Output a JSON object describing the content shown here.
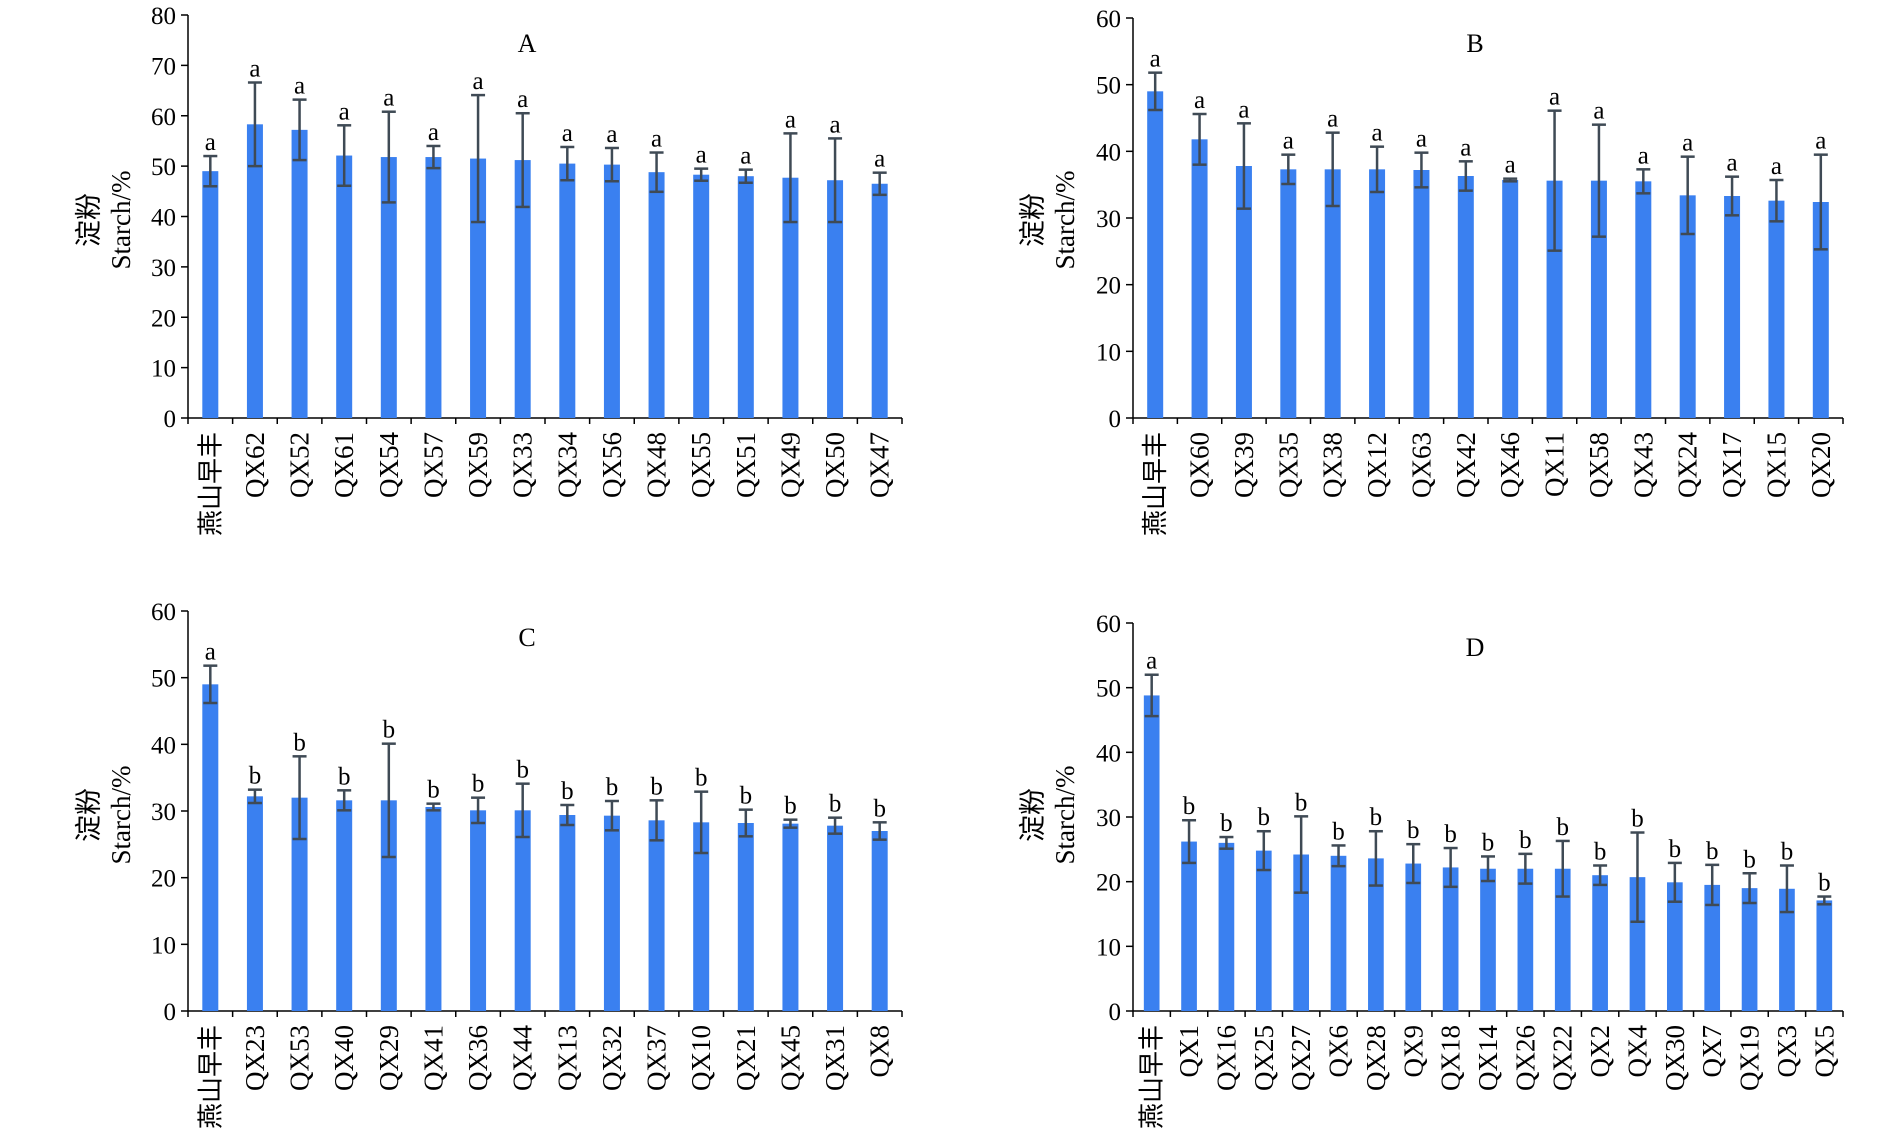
{
  "figure": {
    "bar_color": "#3a80f0",
    "error_color": "#3f4a55",
    "ylabel_cn": "淀粉",
    "ylabel_en": "Starch/%"
  },
  "chart_data": [
    {
      "type": "bar",
      "title": "A",
      "ylabel": "淀粉 Starch/%",
      "ylim": [
        0,
        80
      ],
      "yticks": [
        0,
        10,
        20,
        30,
        40,
        50,
        60,
        70,
        80
      ],
      "categories": [
        "燕山早丰",
        "QX62",
        "QX52",
        "QX61",
        "QX54",
        "QX57",
        "QX59",
        "QX33",
        "QX34",
        "QX56",
        "QX48",
        "QX55",
        "QX51",
        "QX49",
        "QX50",
        "QX47"
      ],
      "values": [
        49.0,
        58.3,
        57.2,
        52.1,
        51.8,
        51.8,
        51.5,
        51.2,
        50.5,
        50.3,
        48.8,
        48.3,
        48.0,
        47.7,
        47.2,
        46.5
      ],
      "errors": [
        3.0,
        8.3,
        6.0,
        6.0,
        9.0,
        2.2,
        12.6,
        9.3,
        3.3,
        3.3,
        3.9,
        1.2,
        1.3,
        8.8,
        8.3,
        2.2
      ],
      "letters": [
        "a",
        "a",
        "a",
        "a",
        "a",
        "a",
        "a",
        "a",
        "a",
        "a",
        "a",
        "a",
        "a",
        "a",
        "a",
        "a"
      ]
    },
    {
      "type": "bar",
      "title": "B",
      "ylabel": "淀粉 Starch/%",
      "ylim": [
        0,
        60
      ],
      "yticks": [
        0,
        10,
        20,
        30,
        40,
        50,
        60
      ],
      "categories": [
        "燕山早丰",
        "QX60",
        "QX39",
        "QX35",
        "QX38",
        "QX12",
        "QX63",
        "QX42",
        "QX46",
        "QX11",
        "QX58",
        "QX43",
        "QX24",
        "QX17",
        "QX15",
        "QX20"
      ],
      "values": [
        49.0,
        41.8,
        37.8,
        37.3,
        37.3,
        37.3,
        37.2,
        36.3,
        35.7,
        35.6,
        35.6,
        35.5,
        33.4,
        33.3,
        32.6,
        32.4
      ],
      "errors": [
        2.8,
        3.8,
        6.4,
        2.2,
        5.5,
        3.4,
        2.6,
        2.2,
        0.2,
        10.5,
        8.4,
        1.8,
        5.8,
        2.9,
        3.1,
        7.1
      ],
      "letters": [
        "a",
        "a",
        "a",
        "a",
        "a",
        "a",
        "a",
        "a",
        "a",
        "a",
        "a",
        "a",
        "a",
        "a",
        "a",
        "a"
      ]
    },
    {
      "type": "bar",
      "title": "C",
      "ylabel": "淀粉 Starch/%",
      "ylim": [
        0,
        60
      ],
      "yticks": [
        0,
        10,
        20,
        30,
        40,
        50,
        60
      ],
      "categories": [
        "燕山早丰",
        "QX23",
        "QX53",
        "QX40",
        "QX29",
        "QX41",
        "QX36",
        "QX44",
        "QX13",
        "QX32",
        "QX37",
        "QX10",
        "QX21",
        "QX45",
        "QX31",
        "QX8"
      ],
      "values": [
        49.0,
        32.2,
        32.0,
        31.6,
        31.6,
        30.6,
        30.1,
        30.1,
        29.4,
        29.3,
        28.6,
        28.3,
        28.2,
        28.1,
        27.8,
        27.0
      ],
      "errors": [
        2.8,
        1.0,
        6.2,
        1.5,
        8.5,
        0.5,
        1.9,
        4.0,
        1.5,
        2.2,
        3.0,
        4.6,
        2.0,
        0.6,
        1.2,
        1.3
      ],
      "letters": [
        "a",
        "b",
        "b",
        "b",
        "b",
        "b",
        "b",
        "b",
        "b",
        "b",
        "b",
        "b",
        "b",
        "b",
        "b",
        "b"
      ]
    },
    {
      "type": "bar",
      "title": "D",
      "ylabel": "淀粉 Starch/%",
      "ylim": [
        0,
        60
      ],
      "yticks": [
        0,
        10,
        20,
        30,
        40,
        50,
        60
      ],
      "categories": [
        "燕山早丰",
        "QX1",
        "QX16",
        "QX25",
        "QX27",
        "QX6",
        "QX28",
        "QX9",
        "QX18",
        "QX14",
        "QX26",
        "QX22",
        "QX2",
        "QX4",
        "QX30",
        "QX7",
        "QX19",
        "QX3",
        "QX5"
      ],
      "values": [
        48.8,
        26.2,
        26.0,
        24.8,
        24.2,
        24.0,
        23.6,
        22.8,
        22.2,
        22.0,
        22.0,
        22.0,
        21.0,
        20.7,
        19.9,
        19.5,
        19.0,
        18.9,
        17.1
      ],
      "errors": [
        3.2,
        3.3,
        0.9,
        3.0,
        5.9,
        1.6,
        4.2,
        3.0,
        3.0,
        1.9,
        2.3,
        4.3,
        1.5,
        6.9,
        3.0,
        3.1,
        2.3,
        3.6,
        0.6
      ],
      "letters": [
        "a",
        "b",
        "b",
        "b",
        "b",
        "b",
        "b",
        "b",
        "b",
        "b",
        "b",
        "b",
        "b",
        "b",
        "b",
        "b",
        "b",
        "b",
        "b"
      ]
    }
  ]
}
